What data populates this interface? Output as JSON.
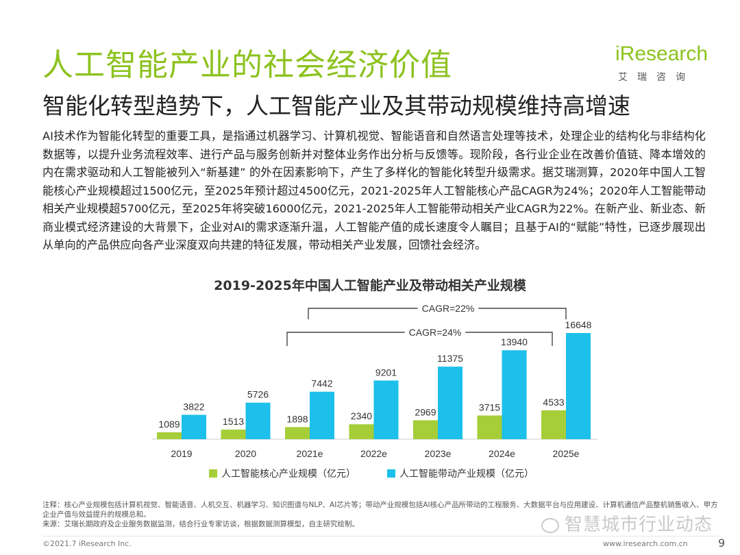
{
  "header": {
    "title": "人工智能产业的社会经济价值",
    "subtitle": "智能化转型趋势下，人工智能产业及其带动规模维持高增速"
  },
  "logo": {
    "word": "iResearch",
    "cn": "艾瑞咨询"
  },
  "body_text": "AI技术作为智能化转型的重要工具，是指通过机器学习、计算机视觉、智能语音和自然语言处理等技术，处理企业的结构化与非结构化数据等，以提升业务流程效率、进行产品与服务创新并对整体业务作出分析与反馈等。现阶段，各行业企业在改善价值链、降本增效的内在需求驱动和人工智能被列入“新基建” 的外在因素影响下，产生了多样化的智能化转型升级需求。据艾瑞测算，2020年中国人工智能核心产业规模超过1500亿元，至2025年预计超过4500亿元，2021-2025年人工智能核心产品CAGR为24%；2020年人工智能带动相关产业规模超5700亿元，至2025年将突破16000亿元，2021-2025年人工智能带动相关产业CAGR为22%。在新产业、新业态、新商业模式经济建设的大背景下，企业对AI的需求逐渐升温，人工智能产值的成长速度令人瞩目；且基于AI的“赋能”特性，已逐步展现出从单向的产品供应向各产业深度双向共建的特征发展，带动相关产业发展，回馈社会经济。",
  "chart_data": {
    "type": "bar",
    "title": "2019-2025年中国人工智能产业及带动相关产业规模",
    "categories": [
      "2019",
      "2020",
      "2021e",
      "2022e",
      "2023e",
      "2024e",
      "2025e"
    ],
    "series": [
      {
        "name": "人工智能核心产业规模（亿元）",
        "color": "#a6ce39",
        "values": [
          1089,
          1513,
          1898,
          2340,
          2969,
          3715,
          4533
        ]
      },
      {
        "name": "人工智能带动产业规模（亿元）",
        "color": "#1cc0ea",
        "values": [
          3822,
          5726,
          7442,
          9201,
          11375,
          13940,
          16648
        ]
      }
    ],
    "annotations": [
      {
        "label": "CAGR=22%",
        "from": "2021e",
        "to": "2025e"
      },
      {
        "label": "CAGR=24%",
        "from": "2021e",
        "to": "2025e"
      }
    ],
    "ylim": [
      0,
      18000
    ],
    "grid": false,
    "legend": "bottom"
  },
  "notes": {
    "note": "注释：核心产业规模包括计算机视觉、智能语音、人机交互、机器学习、知识图谱与NLP、AI芯片等；带动产业规模包括AI核心产品所带动的工程服务、大数据平台与应用建设、计算机通信产品整机销售收入、甲方企业产值与效益提升的规模总和。",
    "source": "来源：艾瑞长期政府及企业服务数据监测，结合行业专家访谈，根据数据测算模型，自主研究绘制。"
  },
  "footer": {
    "copyright": "©2021.7 iResearch Inc.",
    "website": "www.iresearch.com.cn",
    "page": "9"
  },
  "watermark": "智慧城市行业动态"
}
